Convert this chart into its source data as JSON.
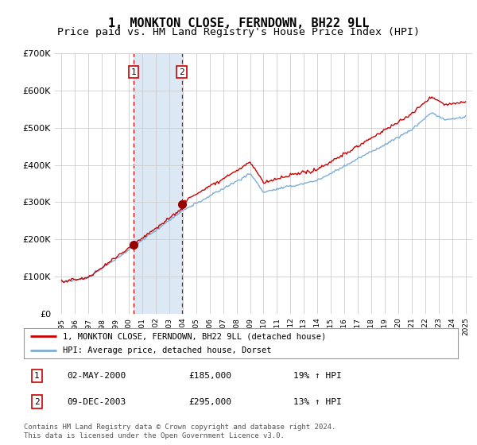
{
  "title": "1, MONKTON CLOSE, FERNDOWN, BH22 9LL",
  "subtitle": "Price paid vs. HM Land Registry's House Price Index (HPI)",
  "legend_line1": "1, MONKTON CLOSE, FERNDOWN, BH22 9LL (detached house)",
  "legend_line2": "HPI: Average price, detached house, Dorset",
  "footnote": "Contains HM Land Registry data © Crown copyright and database right 2024.\nThis data is licensed under the Open Government Licence v3.0.",
  "sale1_date": "02-MAY-2000",
  "sale1_price": "£185,000",
  "sale1_hpi": "19% ↑ HPI",
  "sale2_date": "09-DEC-2003",
  "sale2_price": "£295,000",
  "sale2_hpi": "13% ↑ HPI",
  "sale1_x": 2000.33,
  "sale1_y": 185000,
  "sale2_x": 2003.92,
  "sale2_y": 295000,
  "ylim": [
    0,
    700000
  ],
  "xlim": [
    1994.5,
    2025.5
  ],
  "background_color": "#ffffff",
  "shading_color": "#dce9f5",
  "grid_color": "#cccccc",
  "red_line_color": "#cc0000",
  "blue_line_color": "#7daed4",
  "sale_marker_color": "#990000",
  "title_fontsize": 11,
  "subtitle_fontsize": 9.5
}
